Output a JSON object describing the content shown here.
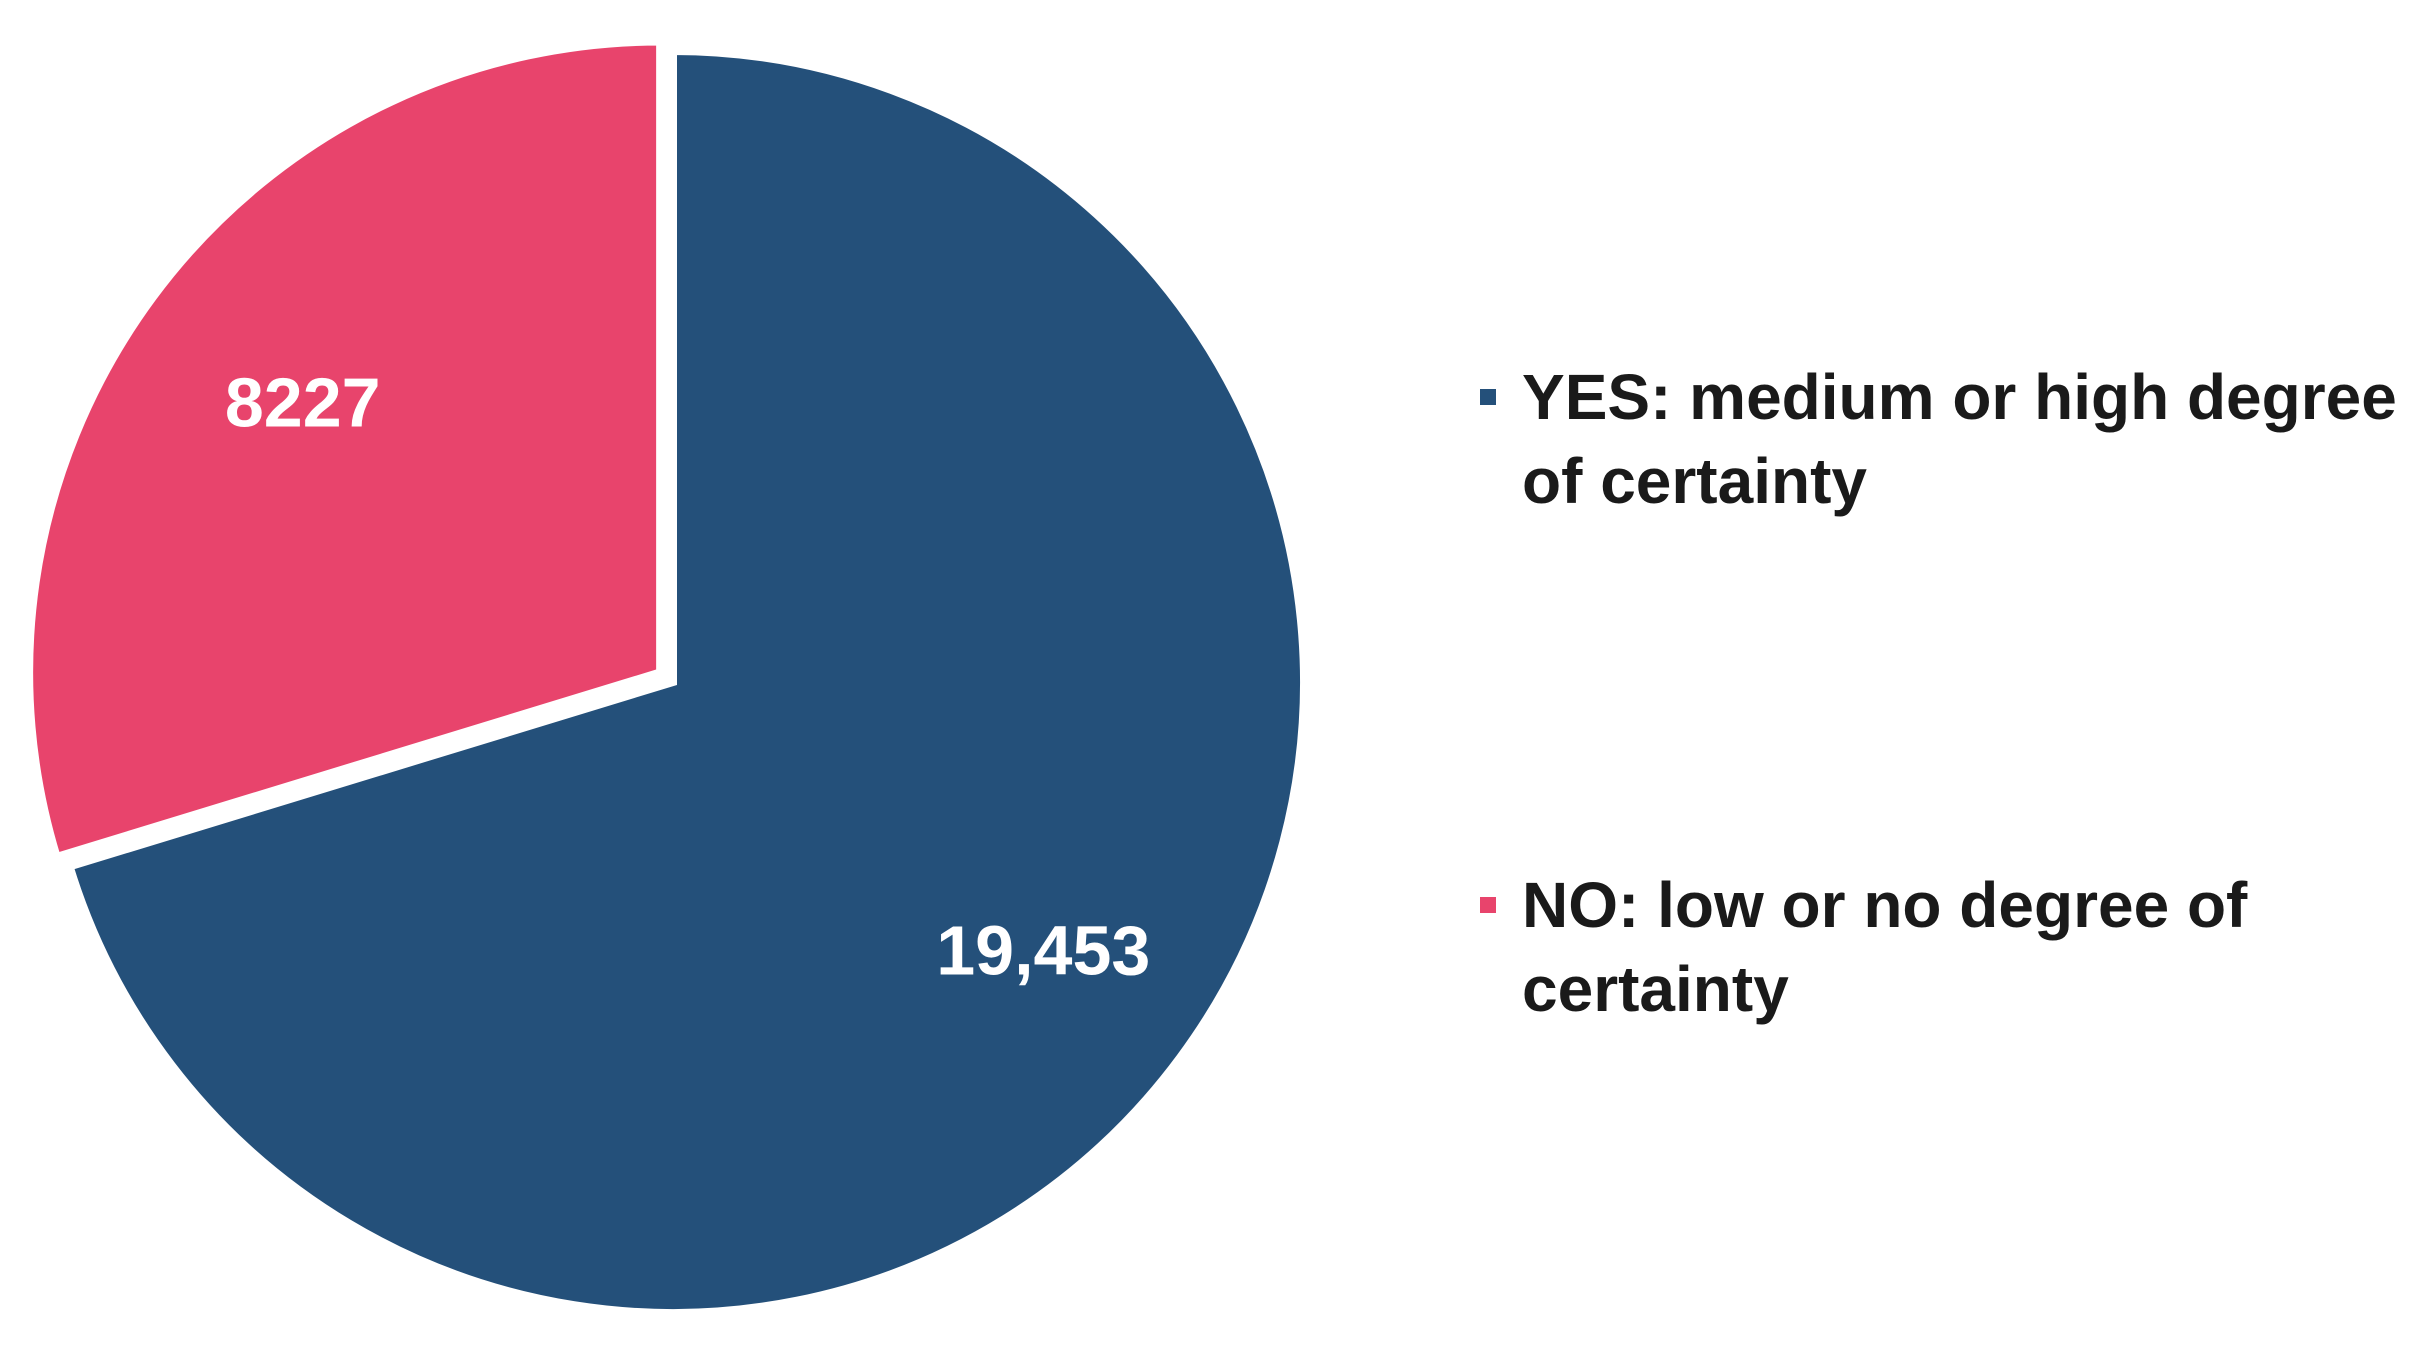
{
  "chart_data": {
    "type": "pie",
    "categories": [
      "YES: medium or high degree of certainty",
      "NO: low or no degree of certainty"
    ],
    "values": [
      19453,
      8227
    ],
    "value_labels": [
      "19,453",
      "8227"
    ],
    "colors": [
      "#24507a",
      "#e8446c"
    ],
    "legend": "right"
  }
}
